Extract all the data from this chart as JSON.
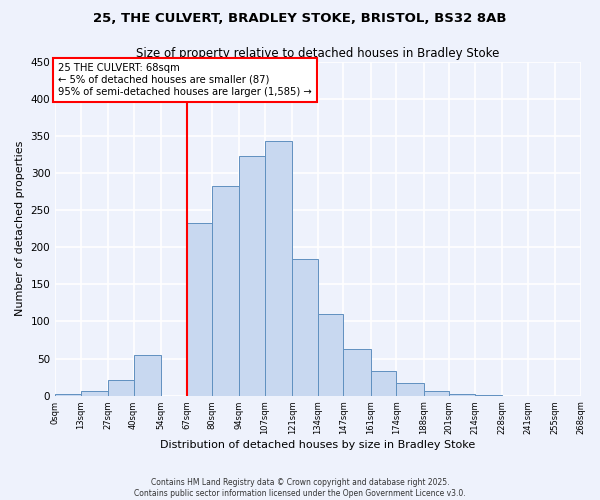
{
  "title": "25, THE CULVERT, BRADLEY STOKE, BRISTOL, BS32 8AB",
  "subtitle": "Size of property relative to detached houses in Bradley Stoke",
  "xlabel": "Distribution of detached houses by size in Bradley Stoke",
  "ylabel": "Number of detached properties",
  "bar_color": "#c8d8f0",
  "bar_edge_color": "#6090c0",
  "bin_edges": [
    0,
    13,
    27,
    40,
    54,
    67,
    80,
    94,
    107,
    121,
    134,
    147,
    161,
    174,
    188,
    201,
    214,
    228,
    241,
    255,
    268
  ],
  "bin_labels": [
    "0sqm",
    "13sqm",
    "27sqm",
    "40sqm",
    "54sqm",
    "67sqm",
    "80sqm",
    "94sqm",
    "107sqm",
    "121sqm",
    "134sqm",
    "147sqm",
    "161sqm",
    "174sqm",
    "188sqm",
    "201sqm",
    "214sqm",
    "228sqm",
    "241sqm",
    "255sqm",
    "268sqm"
  ],
  "counts": [
    2,
    6,
    21,
    55,
    0,
    233,
    283,
    323,
    343,
    184,
    110,
    63,
    33,
    17,
    7,
    2,
    1,
    0,
    0,
    0
  ],
  "vline_x": 67,
  "vline_color": "red",
  "annotation_title": "25 THE CULVERT: 68sqm",
  "annotation_line1": "← 5% of detached houses are smaller (87)",
  "annotation_line2": "95% of semi-detached houses are larger (1,585) →",
  "annotation_box_color": "white",
  "annotation_box_edge_color": "red",
  "ylim": [
    0,
    450
  ],
  "yticks": [
    0,
    50,
    100,
    150,
    200,
    250,
    300,
    350,
    400,
    450
  ],
  "footer1": "Contains HM Land Registry data © Crown copyright and database right 2025.",
  "footer2": "Contains public sector information licensed under the Open Government Licence v3.0.",
  "bg_color": "#eef2fc",
  "grid_color": "white"
}
